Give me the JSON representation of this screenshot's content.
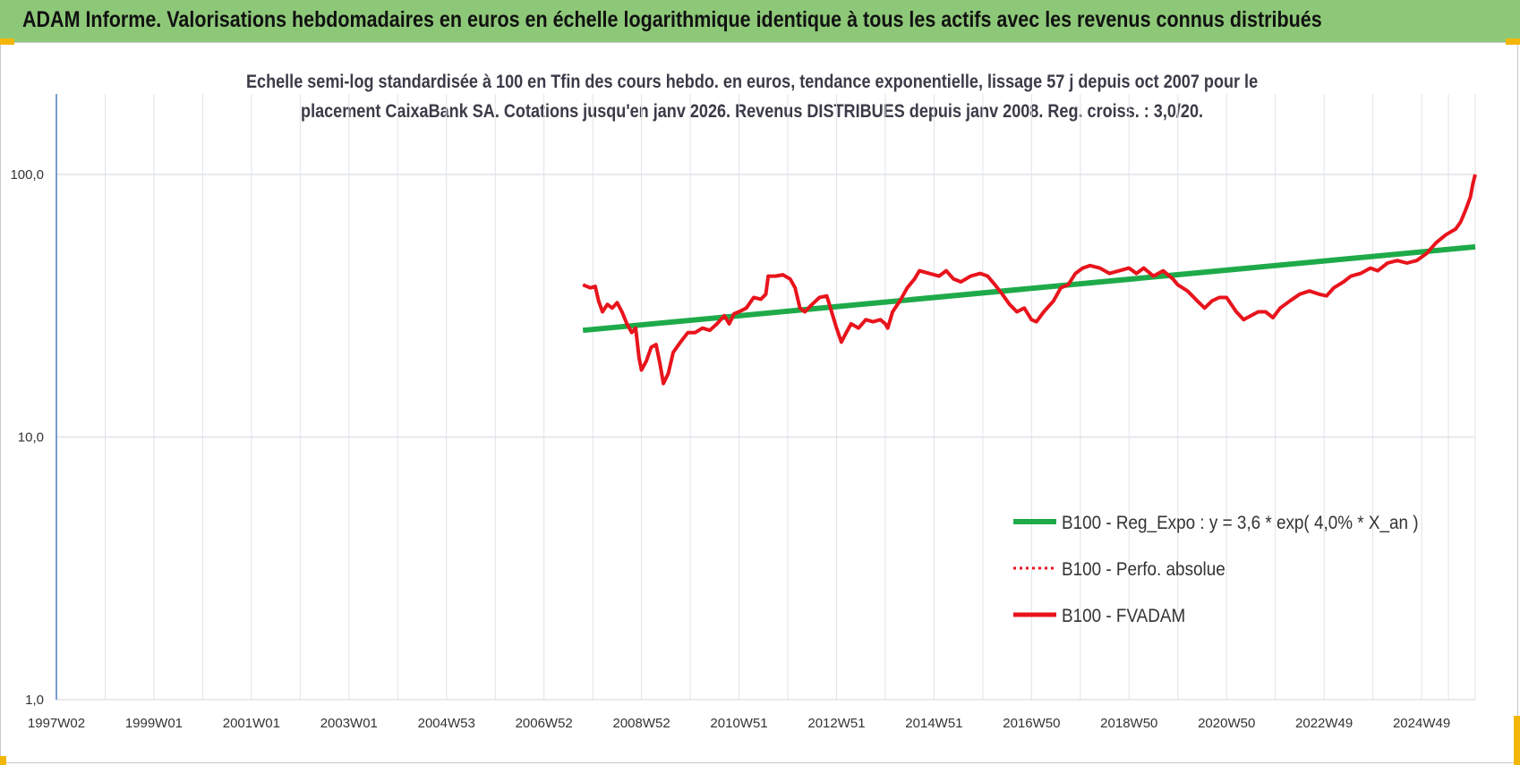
{
  "banner": {
    "title": "ADAM Informe. Valorisations hebdomadaires en euros en échelle logarithmique identique à tous les actifs avec les revenus connus distribués"
  },
  "colors": {
    "banner": "#8dc878",
    "accent_corner": "#f2b705",
    "regression": "#1faa4a",
    "performance": "#e8141c",
    "axis": "#4a7ebb",
    "grid": "#dfe3e8"
  },
  "chart_data": {
    "type": "line",
    "title_lines": [
      "Echelle semi-log standardisée à 100 en Tfin des cours hebdo. en euros, tendance exponentielle, lissage 57 j depuis oct 2007 pour le",
      "placement CaixaBank SA.  Cotations jusqu'en janv 2026. Revenus DISTRIBUES depuis janv 2008. Reg. croiss. : 3,0/20."
    ],
    "y_scale": "log",
    "ylim": [
      1,
      200
    ],
    "y_ticks": [
      "1,0",
      "10,0",
      "100,0"
    ],
    "y_tick_values": [
      1,
      10,
      100
    ],
    "xlim": [
      1997.0,
      2026.1
    ],
    "x_tick_labels": [
      "1997W02",
      "1999W01",
      "2001W01",
      "2003W01",
      "2004W53",
      "2006W52",
      "2008W52",
      "2010W51",
      "2012W51",
      "2014W51",
      "2016W50",
      "2018W50",
      "2020W50",
      "2022W49",
      "2024W49"
    ],
    "x_tick_values": [
      1997.0,
      1999.0,
      2001.0,
      2003.0,
      2005.0,
      2007.0,
      2009.0,
      2011.0,
      2013.0,
      2015.0,
      2017.0,
      2019.0,
      2021.0,
      2023.0,
      2025.0
    ],
    "grid": true,
    "legend_position": "right-middle",
    "series": [
      {
        "name": "B100 - Reg_Expo : y = 3,6 * exp( 4,0% *  X_an )",
        "style": "solid-thick",
        "color": "#1faa4a",
        "points": [
          [
            2007.8,
            25.5
          ],
          [
            2026.1,
            53.0
          ]
        ]
      },
      {
        "name": "B100 - Perfo. absolue",
        "style": "dotted",
        "color": "#e8141c",
        "points": []
      },
      {
        "name": "B100 - FVADAM",
        "style": "solid",
        "color": "#e8141c",
        "points": [
          [
            2007.8,
            38
          ],
          [
            2007.95,
            37
          ],
          [
            2008.05,
            37.5
          ],
          [
            2008.12,
            33
          ],
          [
            2008.2,
            30
          ],
          [
            2008.3,
            32
          ],
          [
            2008.4,
            31
          ],
          [
            2008.5,
            32.5
          ],
          [
            2008.6,
            30
          ],
          [
            2008.7,
            27
          ],
          [
            2008.8,
            25
          ],
          [
            2008.88,
            26
          ],
          [
            2008.95,
            20
          ],
          [
            2009.0,
            18
          ],
          [
            2009.1,
            19.5
          ],
          [
            2009.2,
            22
          ],
          [
            2009.3,
            22.5
          ],
          [
            2009.38,
            19
          ],
          [
            2009.45,
            16
          ],
          [
            2009.55,
            17.5
          ],
          [
            2009.65,
            21
          ],
          [
            2009.8,
            23
          ],
          [
            2009.95,
            25
          ],
          [
            2010.1,
            25
          ],
          [
            2010.25,
            26
          ],
          [
            2010.4,
            25.5
          ],
          [
            2010.55,
            27
          ],
          [
            2010.7,
            29
          ],
          [
            2010.8,
            27
          ],
          [
            2010.9,
            29.5
          ],
          [
            2011.0,
            30
          ],
          [
            2011.15,
            31
          ],
          [
            2011.3,
            34
          ],
          [
            2011.45,
            33.5
          ],
          [
            2011.55,
            35
          ],
          [
            2011.6,
            41
          ],
          [
            2011.75,
            41
          ],
          [
            2011.9,
            41.5
          ],
          [
            2012.05,
            40
          ],
          [
            2012.15,
            37
          ],
          [
            2012.25,
            31
          ],
          [
            2012.35,
            30
          ],
          [
            2012.5,
            32
          ],
          [
            2012.65,
            34
          ],
          [
            2012.8,
            34.5
          ],
          [
            2012.9,
            30
          ],
          [
            2013.0,
            26
          ],
          [
            2013.1,
            23
          ],
          [
            2013.2,
            25
          ],
          [
            2013.3,
            27
          ],
          [
            2013.45,
            26
          ],
          [
            2013.6,
            28
          ],
          [
            2013.75,
            27.5
          ],
          [
            2013.9,
            28
          ],
          [
            2014.0,
            27
          ],
          [
            2014.05,
            26
          ],
          [
            2014.15,
            30
          ],
          [
            2014.3,
            33
          ],
          [
            2014.45,
            37
          ],
          [
            2014.6,
            40
          ],
          [
            2014.7,
            43
          ],
          [
            2014.9,
            42
          ],
          [
            2015.1,
            41
          ],
          [
            2015.25,
            43
          ],
          [
            2015.4,
            40
          ],
          [
            2015.55,
            39
          ],
          [
            2015.75,
            41
          ],
          [
            2015.95,
            42
          ],
          [
            2016.1,
            41
          ],
          [
            2016.25,
            38
          ],
          [
            2016.4,
            35
          ],
          [
            2016.55,
            32
          ],
          [
            2016.7,
            30
          ],
          [
            2016.85,
            31
          ],
          [
            2017.0,
            28
          ],
          [
            2017.1,
            27.5
          ],
          [
            2017.25,
            30
          ],
          [
            2017.45,
            33
          ],
          [
            2017.6,
            37
          ],
          [
            2017.75,
            38
          ],
          [
            2017.9,
            42
          ],
          [
            2018.05,
            44
          ],
          [
            2018.2,
            45
          ],
          [
            2018.4,
            44
          ],
          [
            2018.6,
            42
          ],
          [
            2018.8,
            43
          ],
          [
            2019.0,
            44
          ],
          [
            2019.15,
            42
          ],
          [
            2019.3,
            44
          ],
          [
            2019.5,
            41
          ],
          [
            2019.7,
            43
          ],
          [
            2019.9,
            40
          ],
          [
            2020.0,
            38
          ],
          [
            2020.2,
            36
          ],
          [
            2020.4,
            33
          ],
          [
            2020.55,
            31
          ],
          [
            2020.7,
            33
          ],
          [
            2020.85,
            34
          ],
          [
            2021.0,
            34
          ],
          [
            2021.2,
            30
          ],
          [
            2021.35,
            28
          ],
          [
            2021.5,
            29
          ],
          [
            2021.65,
            30
          ],
          [
            2021.8,
            30
          ],
          [
            2021.95,
            28.5
          ],
          [
            2022.1,
            31
          ],
          [
            2022.3,
            33
          ],
          [
            2022.5,
            35
          ],
          [
            2022.7,
            36
          ],
          [
            2022.9,
            35
          ],
          [
            2023.05,
            34.5
          ],
          [
            2023.2,
            37
          ],
          [
            2023.4,
            39
          ],
          [
            2023.55,
            41
          ],
          [
            2023.75,
            42
          ],
          [
            2023.95,
            44
          ],
          [
            2024.1,
            43
          ],
          [
            2024.3,
            46
          ],
          [
            2024.5,
            47
          ],
          [
            2024.7,
            46
          ],
          [
            2024.9,
            47
          ],
          [
            2025.1,
            50
          ],
          [
            2025.3,
            55
          ],
          [
            2025.5,
            59
          ],
          [
            2025.7,
            62
          ],
          [
            2025.8,
            66
          ],
          [
            2025.9,
            73
          ],
          [
            2026.0,
            82
          ],
          [
            2026.05,
            92
          ],
          [
            2026.1,
            100
          ]
        ]
      }
    ]
  }
}
